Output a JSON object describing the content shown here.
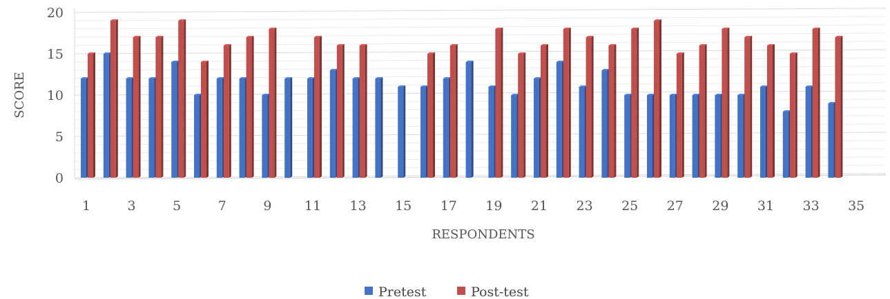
{
  "chart_data": {
    "type": "bar",
    "title": "",
    "xlabel": "RESPONDENTS",
    "ylabel": "SCORE",
    "ylim": [
      0,
      20
    ],
    "yticks": [
      0,
      5,
      10,
      15,
      20
    ],
    "grid": true,
    "three_d": true,
    "legend_position": "bottom",
    "categories": [
      1,
      2,
      3,
      4,
      5,
      6,
      7,
      8,
      9,
      10,
      11,
      12,
      13,
      14,
      15,
      16,
      17,
      18,
      19,
      20,
      21,
      22,
      23,
      24,
      25,
      26,
      27,
      28,
      29,
      30,
      31,
      32,
      33,
      34,
      35
    ],
    "x_tick_labels": [
      "1",
      "3",
      "5",
      "7",
      "9",
      "11",
      "13",
      "15",
      "17",
      "19",
      "21",
      "23",
      "25",
      "27",
      "29",
      "31",
      "33",
      "35"
    ],
    "series": [
      {
        "name": "Pretest",
        "color": "#4472c4",
        "values": [
          12,
          15,
          12,
          12,
          14,
          10,
          12,
          12,
          10,
          12,
          12,
          13,
          12,
          12,
          11,
          11,
          12,
          14,
          11,
          10,
          12,
          14,
          11,
          13,
          10,
          10,
          10,
          10,
          10,
          10,
          11,
          8,
          11,
          9,
          null
        ]
      },
      {
        "name": "Post-test",
        "color": "#c0504d",
        "values": [
          15,
          19,
          17,
          17,
          19,
          14,
          16,
          17,
          18,
          null,
          17,
          16,
          16,
          null,
          null,
          15,
          16,
          null,
          18,
          15,
          16,
          18,
          17,
          16,
          18,
          19,
          15,
          16,
          18,
          17,
          16,
          15,
          18,
          17,
          null
        ]
      }
    ]
  }
}
